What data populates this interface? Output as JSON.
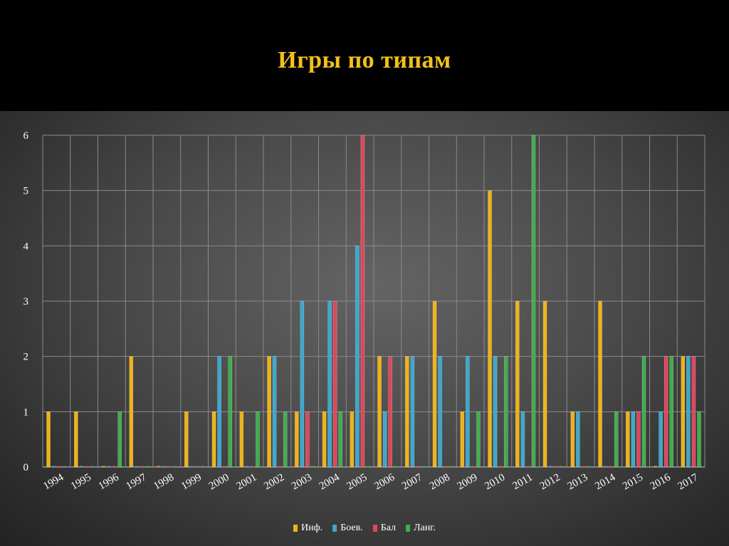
{
  "slide": {
    "title": "Игры по типам"
  },
  "colors": {
    "Инф.": "#f0b411",
    "Боев.": "#3aa8cf",
    "Бал": "#e0455a",
    "Ланг.": "#3fae4c",
    "grid": "#8a8a8a",
    "axis": "#9a9a9a"
  },
  "chart_data": {
    "type": "bar",
    "title": "Игры по типам",
    "xlabel": "",
    "ylabel": "",
    "ylim": [
      0,
      6
    ],
    "yticks": [
      0,
      1,
      2,
      3,
      4,
      5,
      6
    ],
    "grid": true,
    "legend_position": "bottom",
    "categories": [
      "1994",
      "1995",
      "1996",
      "1997",
      "1998",
      "1999",
      "2000",
      "2001",
      "2002",
      "2003",
      "2004",
      "2005",
      "2006",
      "2007",
      "2008",
      "2009",
      "2010",
      "2011",
      "2012",
      "2013",
      "2014",
      "2015",
      "2016",
      "2017"
    ],
    "series": [
      {
        "name": "Инф.",
        "values": [
          1,
          1,
          0,
          2,
          0,
          1,
          1,
          1,
          2,
          1,
          1,
          1,
          2,
          2,
          3,
          1,
          5,
          3,
          3,
          1,
          3,
          1,
          0,
          2
        ]
      },
      {
        "name": "Боев.",
        "values": [
          0,
          0,
          0,
          0,
          0,
          0,
          2,
          0,
          2,
          3,
          3,
          4,
          1,
          2,
          2,
          2,
          2,
          1,
          0,
          1,
          0,
          1,
          1,
          2
        ]
      },
      {
        "name": "Бал",
        "values": [
          0,
          0,
          0,
          0,
          0,
          0,
          0,
          0,
          0,
          1,
          3,
          6,
          2,
          0,
          0,
          0,
          0,
          0,
          0,
          0,
          0,
          1,
          2,
          2
        ]
      },
      {
        "name": "Ланг.",
        "values": [
          0,
          0,
          1,
          0,
          0,
          0,
          2,
          1,
          1,
          0,
          1,
          0,
          0,
          0,
          0,
          1,
          2,
          6,
          0,
          0,
          1,
          2,
          2,
          1
        ]
      }
    ]
  }
}
